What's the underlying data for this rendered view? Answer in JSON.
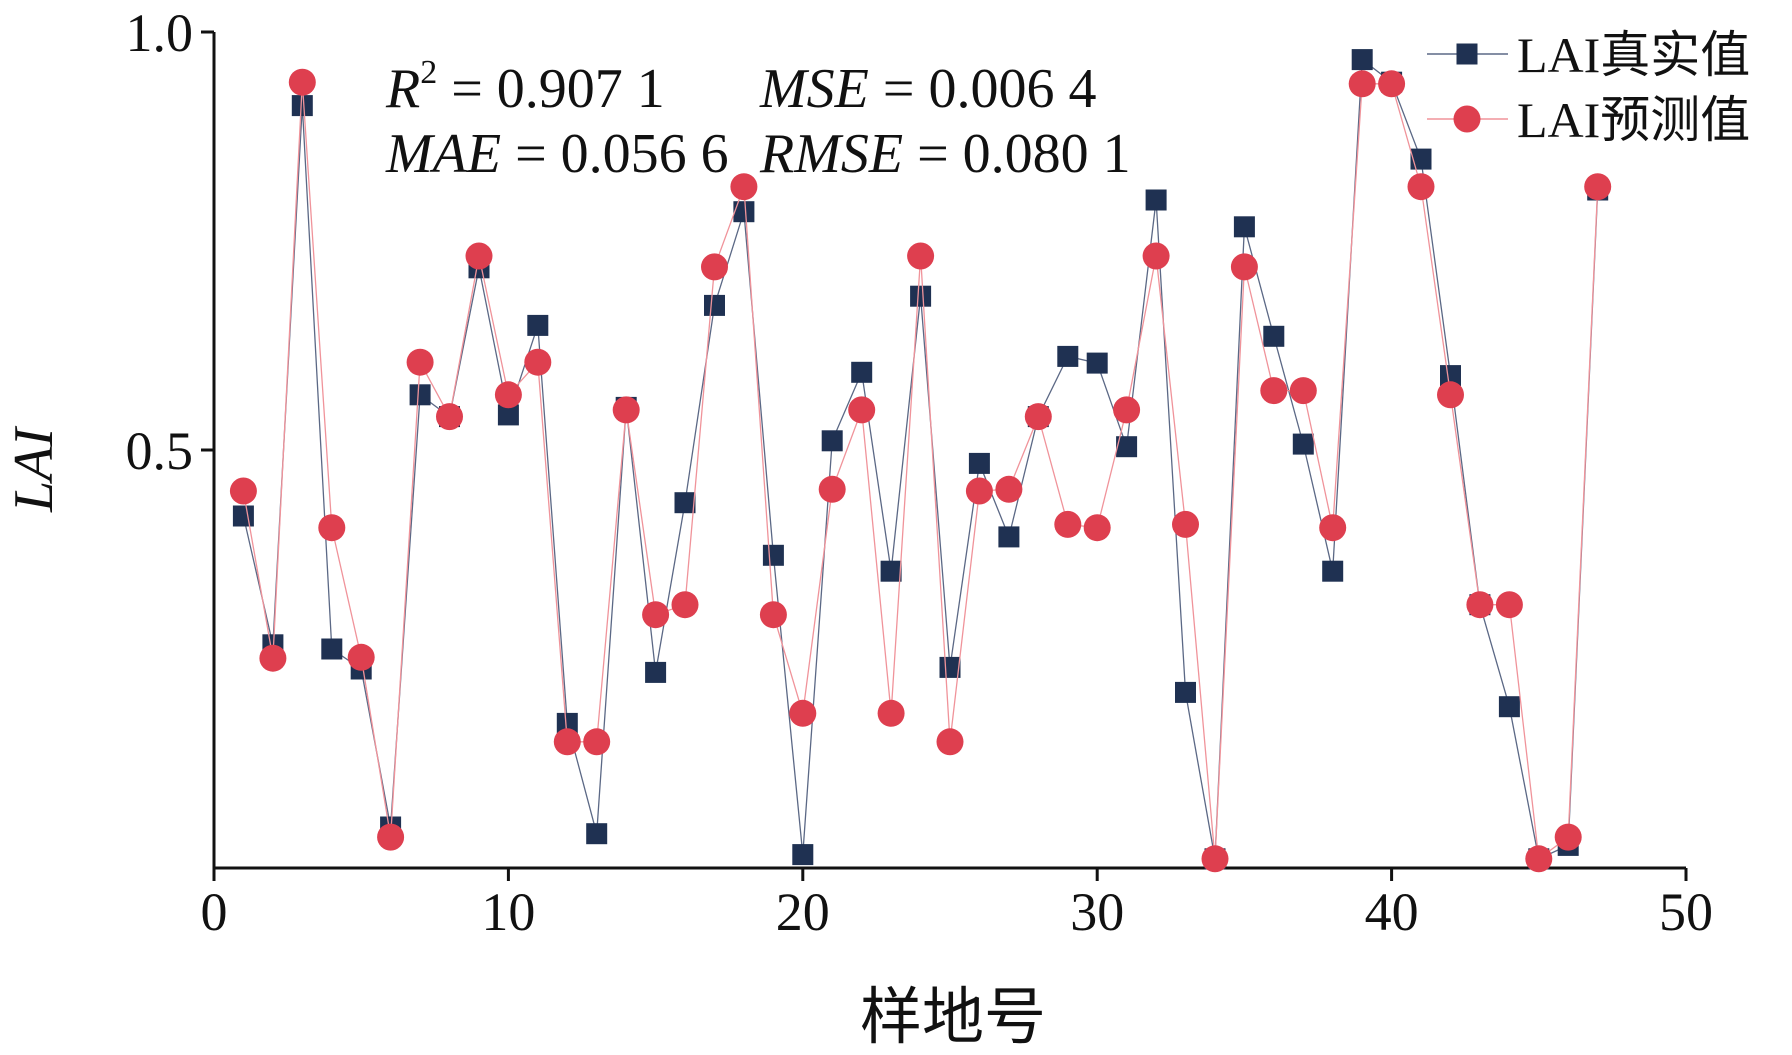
{
  "chart_data": {
    "type": "line",
    "xlabel": "样地号",
    "ylabel": "LAI",
    "xlim": [
      0,
      50
    ],
    "ylim": [
      0,
      1.0
    ],
    "xticks": [
      0,
      10,
      20,
      30,
      40,
      50
    ],
    "xtick_labels": [
      "0",
      "10",
      "20",
      "30",
      "40",
      "50"
    ],
    "yticks": [
      0.5,
      1.0
    ],
    "ytick_labels": [
      "0.5",
      "1.0"
    ],
    "grid": false,
    "legend_position": "top-right",
    "x": [
      1,
      2,
      3,
      4,
      5,
      6,
      7,
      8,
      9,
      10,
      11,
      12,
      13,
      14,
      15,
      16,
      17,
      18,
      19,
      20,
      21,
      22,
      23,
      24,
      25,
      26,
      27,
      28,
      29,
      30,
      31,
      32,
      33,
      34,
      35,
      36,
      37,
      38,
      39,
      40,
      41,
      42,
      43,
      44,
      45,
      46,
      47
    ],
    "series": [
      {
        "name": "LAI真实值",
        "marker": "square",
        "color": "#1f3152",
        "line_color": "#5b6885",
        "values": [
          0.421,
          0.267,
          0.912,
          0.262,
          0.238,
          0.049,
          0.566,
          0.54,
          0.718,
          0.542,
          0.649,
          0.173,
          0.041,
          0.551,
          0.234,
          0.437,
          0.673,
          0.785,
          0.374,
          0.016,
          0.511,
          0.593,
          0.355,
          0.684,
          0.24,
          0.484,
          0.396,
          0.54,
          0.612,
          0.604,
          0.504,
          0.799,
          0.21,
          0.011,
          0.767,
          0.636,
          0.507,
          0.355,
          0.967,
          0.94,
          0.848,
          0.589,
          0.315,
          0.193,
          0.011,
          0.027,
          0.811
        ]
      },
      {
        "name": "LAI预测值",
        "marker": "circle",
        "color": "#de3f4f",
        "line_color": "#f0939a",
        "values": [
          0.451,
          0.251,
          0.94,
          0.407,
          0.252,
          0.037,
          0.605,
          0.54,
          0.732,
          0.566,
          0.605,
          0.151,
          0.151,
          0.548,
          0.303,
          0.315,
          0.719,
          0.815,
          0.303,
          0.185,
          0.453,
          0.548,
          0.185,
          0.732,
          0.151,
          0.451,
          0.453,
          0.54,
          0.411,
          0.407,
          0.548,
          0.732,
          0.411,
          0.011,
          0.719,
          0.571,
          0.571,
          0.407,
          0.938,
          0.938,
          0.815,
          0.566,
          0.315,
          0.315,
          0.011,
          0.037,
          0.815
        ]
      }
    ],
    "annotations": [
      {
        "label": "R",
        "sup": "2",
        "text": "= 0.907 1"
      },
      {
        "label": "MSE",
        "text": "= 0.006 4"
      },
      {
        "label": "MAE",
        "text": "= 0.056 6"
      },
      {
        "label": "RMSE",
        "text": "= 0.080 1"
      }
    ]
  }
}
